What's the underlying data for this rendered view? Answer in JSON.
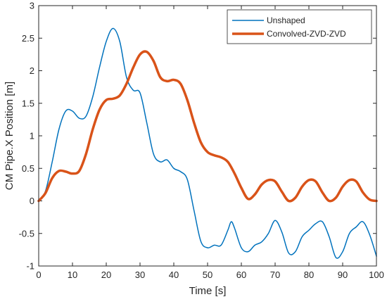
{
  "chart_data": {
    "type": "line",
    "xlabel": "Time [s]",
    "ylabel": "CM Pipe.X Position [m]",
    "xlim": [
      0,
      100
    ],
    "ylim": [
      -1,
      3
    ],
    "xticks": [
      0,
      10,
      20,
      30,
      40,
      50,
      60,
      70,
      80,
      90,
      100
    ],
    "xtick_labels": [
      "0",
      "10",
      "20",
      "30",
      "40",
      "50",
      "60",
      "70",
      "80",
      "90",
      "100"
    ],
    "yticks": [
      -1,
      -0.5,
      0,
      0.5,
      1,
      1.5,
      2,
      2.5,
      3
    ],
    "ytick_labels": [
      "-1",
      "-0.5",
      "0",
      "0.5",
      "1",
      "1.5",
      "2",
      "2.5",
      "3"
    ],
    "grid": false,
    "legend_position": "top-right",
    "series": [
      {
        "name": "Unshaped",
        "color": "#0072BD",
        "line_width": "thin",
        "x": [
          0,
          2,
          4,
          6,
          8,
          10,
          12,
          14,
          16,
          18,
          20,
          22,
          24,
          26,
          28,
          30,
          32,
          34,
          36,
          38,
          40,
          42,
          44,
          46,
          48,
          50,
          52,
          54,
          56,
          57,
          58,
          60,
          62,
          64,
          66,
          68,
          70,
          72,
          74,
          76,
          78,
          80,
          82,
          84,
          86,
          88,
          90,
          92,
          94,
          96,
          98,
          100
        ],
        "y": [
          0,
          0.15,
          0.6,
          1.1,
          1.38,
          1.38,
          1.27,
          1.3,
          1.6,
          2.05,
          2.45,
          2.65,
          2.45,
          1.9,
          1.7,
          1.66,
          1.2,
          0.72,
          0.6,
          0.63,
          0.5,
          0.45,
          0.33,
          -0.15,
          -0.62,
          -0.72,
          -0.68,
          -0.68,
          -0.45,
          -0.32,
          -0.42,
          -0.72,
          -0.78,
          -0.68,
          -0.63,
          -0.5,
          -0.3,
          -0.48,
          -0.8,
          -0.78,
          -0.55,
          -0.45,
          -0.35,
          -0.32,
          -0.55,
          -0.87,
          -0.78,
          -0.5,
          -0.4,
          -0.32,
          -0.52,
          -0.85
        ]
      },
      {
        "name": "Convolved-ZVD-ZVD",
        "color": "#D95319",
        "line_width": "thick",
        "x": [
          0,
          2,
          4,
          6,
          8,
          10,
          12,
          14,
          16,
          18,
          20,
          22,
          24,
          26,
          28,
          30,
          32,
          34,
          36,
          38,
          40,
          42,
          44,
          46,
          48,
          50,
          52,
          54,
          56,
          58,
          60,
          62,
          64,
          66,
          68,
          70,
          72,
          74,
          76,
          78,
          80,
          82,
          84,
          86,
          88,
          90,
          92,
          94,
          96,
          98,
          100
        ],
        "y": [
          0,
          0.12,
          0.35,
          0.46,
          0.45,
          0.42,
          0.46,
          0.72,
          1.1,
          1.4,
          1.55,
          1.57,
          1.62,
          1.8,
          2.05,
          2.25,
          2.29,
          2.15,
          1.9,
          1.84,
          1.86,
          1.8,
          1.55,
          1.2,
          0.9,
          0.75,
          0.7,
          0.67,
          0.6,
          0.42,
          0.2,
          0.03,
          0.1,
          0.25,
          0.32,
          0.3,
          0.14,
          0.0,
          0.05,
          0.22,
          0.32,
          0.3,
          0.13,
          0.0,
          0.05,
          0.22,
          0.32,
          0.3,
          0.13,
          0.02,
          0.0
        ]
      }
    ]
  }
}
